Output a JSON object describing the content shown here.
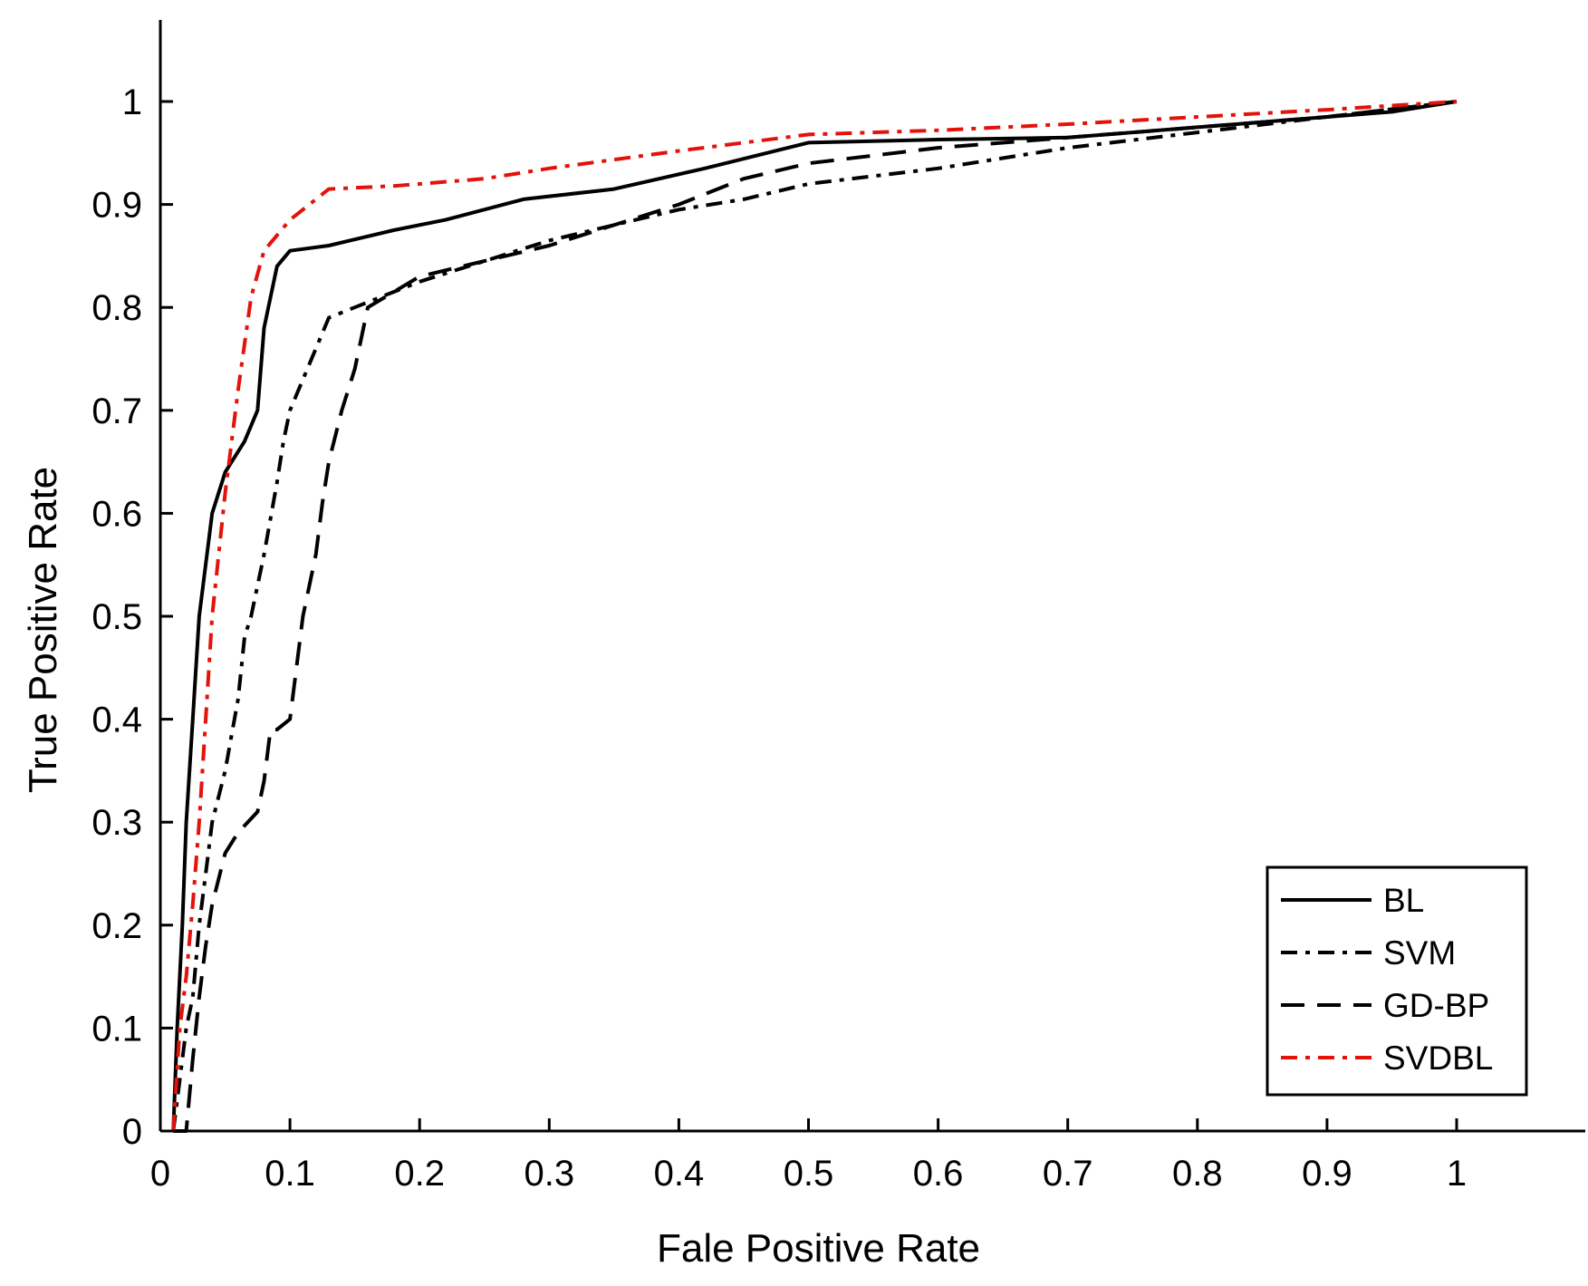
{
  "chart_data": {
    "type": "line",
    "title": "",
    "xlabel": "Fale Positive Rate",
    "ylabel": "True Positive Rate",
    "xlim": [
      0,
      1.08
    ],
    "ylim": [
      0,
      1.08
    ],
    "xticks": [
      0,
      0.1,
      0.2,
      0.3,
      0.4,
      0.5,
      0.6,
      0.7,
      0.8,
      0.9,
      1
    ],
    "xtick_labels": [
      "0",
      "0.1",
      "0.2",
      "0.3",
      "0.4",
      "0.5",
      "0.6",
      "0.7",
      "0.8",
      "0.9",
      "1"
    ],
    "yticks": [
      0,
      0.1,
      0.2,
      0.3,
      0.4,
      0.5,
      0.6,
      0.7,
      0.8,
      0.9,
      1
    ],
    "ytick_labels": [
      "0",
      "0.1",
      "0.2",
      "0.3",
      "0.4",
      "0.5",
      "0.6",
      "0.7",
      "0.8",
      "0.9",
      "1"
    ],
    "grid": false,
    "legend_position": "bottom-right",
    "series": [
      {
        "name": "BL",
        "color": "#000000",
        "style": "solid",
        "x": [
          0.01,
          0.013,
          0.017,
          0.02,
          0.025,
          0.03,
          0.04,
          0.05,
          0.065,
          0.075,
          0.08,
          0.09,
          0.1,
          0.13,
          0.18,
          0.22,
          0.28,
          0.35,
          0.42,
          0.5,
          0.6,
          0.7,
          0.8,
          0.9,
          0.95,
          1.0
        ],
        "y": [
          0.0,
          0.1,
          0.2,
          0.3,
          0.4,
          0.5,
          0.6,
          0.64,
          0.67,
          0.7,
          0.78,
          0.84,
          0.855,
          0.86,
          0.875,
          0.885,
          0.905,
          0.915,
          0.935,
          0.96,
          0.963,
          0.965,
          0.975,
          0.985,
          0.99,
          1.0
        ]
      },
      {
        "name": "SVM",
        "color": "#000000",
        "style": "dashdot",
        "x": [
          0.01,
          0.015,
          0.02,
          0.025,
          0.03,
          0.035,
          0.04,
          0.05,
          0.06,
          0.065,
          0.07,
          0.08,
          0.09,
          0.095,
          0.1,
          0.11,
          0.13,
          0.15,
          0.17,
          0.2,
          0.25,
          0.3,
          0.35,
          0.4,
          0.45,
          0.5,
          0.6,
          0.7,
          0.8,
          0.9,
          1.0
        ],
        "y": [
          0.0,
          0.05,
          0.1,
          0.13,
          0.2,
          0.25,
          0.3,
          0.35,
          0.42,
          0.48,
          0.5,
          0.56,
          0.63,
          0.67,
          0.7,
          0.73,
          0.79,
          0.8,
          0.81,
          0.825,
          0.845,
          0.865,
          0.88,
          0.895,
          0.905,
          0.92,
          0.935,
          0.955,
          0.97,
          0.985,
          1.0
        ]
      },
      {
        "name": "GD-BP",
        "color": "#000000",
        "style": "dashed",
        "x": [
          0.01,
          0.02,
          0.025,
          0.03,
          0.035,
          0.04,
          0.05,
          0.06,
          0.075,
          0.08,
          0.085,
          0.09,
          0.1,
          0.11,
          0.12,
          0.125,
          0.13,
          0.14,
          0.15,
          0.155,
          0.16,
          0.2,
          0.3,
          0.4,
          0.45,
          0.5,
          0.6,
          0.7,
          0.8,
          0.9,
          1.0
        ],
        "y": [
          0.0,
          0.0,
          0.07,
          0.13,
          0.18,
          0.22,
          0.27,
          0.29,
          0.31,
          0.34,
          0.39,
          0.39,
          0.4,
          0.5,
          0.56,
          0.61,
          0.65,
          0.7,
          0.74,
          0.77,
          0.8,
          0.83,
          0.86,
          0.9,
          0.925,
          0.94,
          0.955,
          0.965,
          0.975,
          0.985,
          1.0
        ]
      },
      {
        "name": "SVDBL",
        "color": "#e3120b",
        "style": "dashdot",
        "x": [
          0.01,
          0.015,
          0.02,
          0.025,
          0.03,
          0.035,
          0.04,
          0.05,
          0.06,
          0.07,
          0.08,
          0.1,
          0.13,
          0.18,
          0.25,
          0.3,
          0.4,
          0.5,
          0.6,
          0.7,
          0.8,
          0.9,
          1.0
        ],
        "y": [
          0.0,
          0.1,
          0.15,
          0.22,
          0.3,
          0.4,
          0.5,
          0.62,
          0.72,
          0.81,
          0.855,
          0.885,
          0.915,
          0.918,
          0.925,
          0.935,
          0.952,
          0.968,
          0.972,
          0.978,
          0.985,
          0.992,
          1.0
        ]
      }
    ]
  }
}
